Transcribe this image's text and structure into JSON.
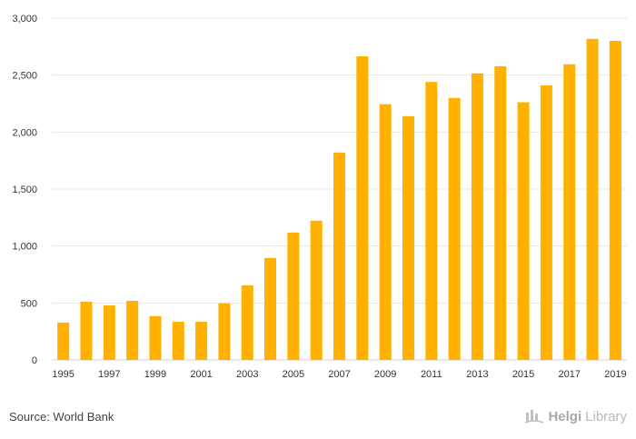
{
  "chart_data": {
    "type": "bar",
    "title": "",
    "xlabel": "",
    "ylabel": "",
    "categories": [
      "1995",
      "1996",
      "1997",
      "1998",
      "1999",
      "2000",
      "2001",
      "2002",
      "2003",
      "2004",
      "2005",
      "2006",
      "2007",
      "2008",
      "2009",
      "2010",
      "2011",
      "2012",
      "2013",
      "2014",
      "2015",
      "2016",
      "2017",
      "2018",
      "2019"
    ],
    "x_tick_labels": [
      "1995",
      "1997",
      "1999",
      "2001",
      "2003",
      "2005",
      "2007",
      "2009",
      "2011",
      "2013",
      "2015",
      "2017",
      "2019"
    ],
    "values": [
      328,
      510,
      478,
      518,
      385,
      335,
      335,
      497,
      655,
      895,
      1118,
      1222,
      1820,
      2665,
      2245,
      2140,
      2440,
      2300,
      2515,
      2578,
      2262,
      2410,
      2595,
      2818,
      2800
    ],
    "ylim": [
      0,
      3000
    ],
    "y_ticks": [
      0,
      500,
      1000,
      1500,
      2000,
      2500,
      3000
    ],
    "y_tick_labels": [
      "0",
      "500",
      "1,000",
      "1,500",
      "2,000",
      "2,500",
      "3,000"
    ],
    "grid": true,
    "bar_color": "#ffb000",
    "grid_color": "#e6e6e6"
  },
  "footer": {
    "source": "Source: World Bank",
    "brand_name": "Helgi",
    "brand_suffix": "Library",
    "brand_icon": "helgi-library-logo-icon"
  }
}
